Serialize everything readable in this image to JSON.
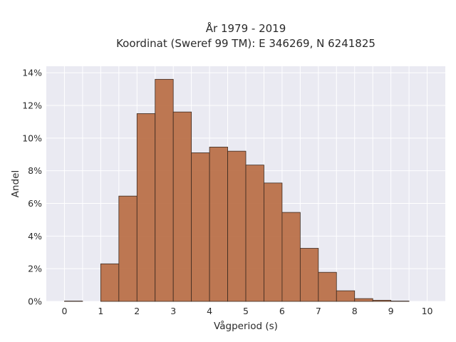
{
  "chart_data": {
    "type": "bar",
    "title_line1": "År 1979 - 2019",
    "title_line2": "Koordinat (Sweref 99 TM): E 346269, N 6241825",
    "xlabel": "Vågperiod (s)",
    "ylabel": "Andel",
    "bin_width": 0.5,
    "bin_starts": [
      0,
      0.5,
      1,
      1.5,
      2,
      2.5,
      3,
      3.5,
      4,
      4.5,
      5,
      5.5,
      6,
      6.5,
      7,
      7.5,
      8,
      8.5,
      9,
      9.5
    ],
    "values": [
      0.02,
      0,
      2.3,
      6.45,
      11.5,
      13.6,
      11.6,
      9.1,
      9.45,
      9.2,
      8.35,
      7.25,
      5.45,
      3.25,
      1.78,
      0.65,
      0.17,
      0.07,
      0.02,
      0
    ],
    "value_unit": "%",
    "xlim": [
      -0.5,
      10.5
    ],
    "ylim": [
      0,
      14.4
    ],
    "xticks": [
      "0",
      "1",
      "2",
      "3",
      "4",
      "5",
      "6",
      "7",
      "8",
      "9",
      "10"
    ],
    "yticks": [
      "0%",
      "2%",
      "4%",
      "6%",
      "8%",
      "10%",
      "12%",
      "14%"
    ],
    "grid": true,
    "colors": {
      "bar_fill": "#b86c44",
      "bar_edge": "#3b2a20",
      "plot_background": "#eaeaf2",
      "grid": "#ffffff"
    }
  }
}
